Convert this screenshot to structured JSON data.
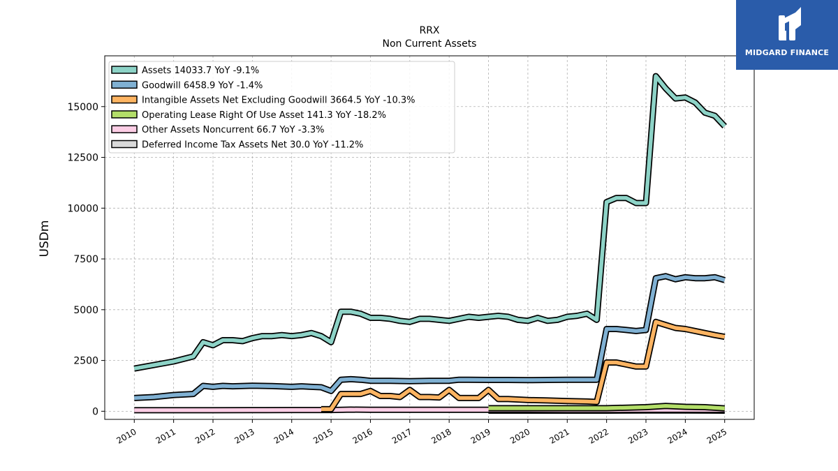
{
  "chart_data": {
    "type": "line",
    "title": "RRX",
    "subtitle": "Non Current  Assets",
    "ylabel": "USDm",
    "xlabel": "",
    "ylim": [
      -400,
      17500
    ],
    "xlim": [
      2009.25,
      2025.75
    ],
    "yticks": [
      0,
      2500,
      5000,
      7500,
      10000,
      12500,
      15000
    ],
    "ytick_labels": [
      "0",
      "2500",
      "5000",
      "7500",
      "10000",
      "12500",
      "15000"
    ],
    "xticks": [
      2010,
      2011,
      2012,
      2013,
      2014,
      2015,
      2016,
      2017,
      2018,
      2019,
      2020,
      2021,
      2022,
      2023,
      2024,
      2025
    ],
    "xtick_labels": [
      "2010",
      "2011",
      "2012",
      "2013",
      "2014",
      "2015",
      "2016",
      "2017",
      "2018",
      "2019",
      "2020",
      "2021",
      "2022",
      "2023",
      "2024",
      "2025"
    ],
    "grid": true,
    "legend_position": "top-left",
    "series": [
      {
        "name": "Assets  14033.7 YoY -9.1%",
        "color": "#8dd3c7",
        "points": [
          [
            2010.0,
            2100
          ],
          [
            2011.0,
            2450
          ],
          [
            2011.5,
            2700
          ],
          [
            2011.75,
            3400
          ],
          [
            2012.0,
            3250
          ],
          [
            2012.25,
            3500
          ],
          [
            2012.5,
            3500
          ],
          [
            2012.75,
            3450
          ],
          [
            2013.0,
            3600
          ],
          [
            2013.25,
            3700
          ],
          [
            2013.5,
            3700
          ],
          [
            2013.75,
            3750
          ],
          [
            2014.0,
            3700
          ],
          [
            2014.25,
            3750
          ],
          [
            2014.5,
            3850
          ],
          [
            2014.75,
            3700
          ],
          [
            2015.0,
            3400
          ],
          [
            2015.25,
            4900
          ],
          [
            2015.5,
            4900
          ],
          [
            2015.75,
            4800
          ],
          [
            2016.0,
            4600
          ],
          [
            2016.25,
            4600
          ],
          [
            2016.5,
            4550
          ],
          [
            2016.75,
            4450
          ],
          [
            2017.0,
            4400
          ],
          [
            2017.25,
            4550
          ],
          [
            2017.5,
            4550
          ],
          [
            2017.75,
            4500
          ],
          [
            2018.0,
            4450
          ],
          [
            2018.25,
            4550
          ],
          [
            2018.5,
            4650
          ],
          [
            2018.75,
            4600
          ],
          [
            2019.0,
            4650
          ],
          [
            2019.25,
            4700
          ],
          [
            2019.5,
            4650
          ],
          [
            2019.75,
            4500
          ],
          [
            2020.0,
            4450
          ],
          [
            2020.25,
            4600
          ],
          [
            2020.5,
            4450
          ],
          [
            2020.75,
            4500
          ],
          [
            2021.0,
            4650
          ],
          [
            2021.25,
            4700
          ],
          [
            2021.5,
            4800
          ],
          [
            2021.75,
            4500
          ],
          [
            2022.0,
            10300
          ],
          [
            2022.25,
            10500
          ],
          [
            2022.5,
            10500
          ],
          [
            2022.75,
            10250
          ],
          [
            2023.0,
            10250
          ],
          [
            2023.25,
            16500
          ],
          [
            2023.5,
            15900
          ],
          [
            2023.75,
            15400
          ],
          [
            2024.0,
            15450
          ],
          [
            2024.25,
            15200
          ],
          [
            2024.5,
            14700
          ],
          [
            2024.75,
            14550
          ],
          [
            2025.0,
            14033.7
          ]
        ]
      },
      {
        "name": "Goodwill  6458.9 YoY -1.4%",
        "color": "#80b1d3",
        "points": [
          [
            2010.0,
            650
          ],
          [
            2010.5,
            700
          ],
          [
            2011.0,
            800
          ],
          [
            2011.5,
            850
          ],
          [
            2011.75,
            1250
          ],
          [
            2012.0,
            1200
          ],
          [
            2012.25,
            1250
          ],
          [
            2012.5,
            1230
          ],
          [
            2013.0,
            1260
          ],
          [
            2013.5,
            1240
          ],
          [
            2014.0,
            1200
          ],
          [
            2014.25,
            1230
          ],
          [
            2014.5,
            1200
          ],
          [
            2014.75,
            1180
          ],
          [
            2015.0,
            1000
          ],
          [
            2015.25,
            1550
          ],
          [
            2015.5,
            1580
          ],
          [
            2015.75,
            1550
          ],
          [
            2016.0,
            1500
          ],
          [
            2016.5,
            1500
          ],
          [
            2017.0,
            1480
          ],
          [
            2017.5,
            1500
          ],
          [
            2018.0,
            1500
          ],
          [
            2018.25,
            1550
          ],
          [
            2018.5,
            1550
          ],
          [
            2019.0,
            1540
          ],
          [
            2019.5,
            1540
          ],
          [
            2020.0,
            1530
          ],
          [
            2020.5,
            1540
          ],
          [
            2021.0,
            1550
          ],
          [
            2021.5,
            1550
          ],
          [
            2021.75,
            1550
          ],
          [
            2022.0,
            4050
          ],
          [
            2022.25,
            4050
          ],
          [
            2022.5,
            4000
          ],
          [
            2022.75,
            3950
          ],
          [
            2023.0,
            4000
          ],
          [
            2023.25,
            6550
          ],
          [
            2023.5,
            6650
          ],
          [
            2023.75,
            6500
          ],
          [
            2024.0,
            6600
          ],
          [
            2024.25,
            6550
          ],
          [
            2024.5,
            6550
          ],
          [
            2024.75,
            6600
          ],
          [
            2025.0,
            6458.9
          ]
        ]
      },
      {
        "name": "Intangible Assets Net Excluding Goodwill  3664.5 YoY -10.3%",
        "color": "#fdb462",
        "points": [
          [
            2014.75,
            100
          ],
          [
            2015.0,
            100
          ],
          [
            2015.25,
            850
          ],
          [
            2015.5,
            850
          ],
          [
            2015.75,
            850
          ],
          [
            2016.0,
            1000
          ],
          [
            2016.25,
            750
          ],
          [
            2016.5,
            750
          ],
          [
            2016.75,
            700
          ],
          [
            2017.0,
            1050
          ],
          [
            2017.25,
            700
          ],
          [
            2017.5,
            700
          ],
          [
            2017.75,
            680
          ],
          [
            2018.0,
            1050
          ],
          [
            2018.25,
            650
          ],
          [
            2018.5,
            650
          ],
          [
            2018.75,
            650
          ],
          [
            2019.0,
            1050
          ],
          [
            2019.25,
            600
          ],
          [
            2019.5,
            600
          ],
          [
            2020.0,
            550
          ],
          [
            2020.5,
            530
          ],
          [
            2021.0,
            500
          ],
          [
            2021.5,
            480
          ],
          [
            2021.75,
            460
          ],
          [
            2022.0,
            2400
          ],
          [
            2022.25,
            2400
          ],
          [
            2022.5,
            2300
          ],
          [
            2022.75,
            2200
          ],
          [
            2023.0,
            2200
          ],
          [
            2023.25,
            4400
          ],
          [
            2023.5,
            4250
          ],
          [
            2023.75,
            4100
          ],
          [
            2024.0,
            4050
          ],
          [
            2024.25,
            3950
          ],
          [
            2024.5,
            3850
          ],
          [
            2024.75,
            3750
          ],
          [
            2025.0,
            3664.5
          ]
        ]
      },
      {
        "name": "Operating Lease Right Of Use Asset  141.3 YoY -18.2%",
        "color": "#b3de69",
        "points": [
          [
            2019.0,
            150
          ],
          [
            2020.0,
            150
          ],
          [
            2021.0,
            150
          ],
          [
            2022.0,
            150
          ],
          [
            2023.0,
            200
          ],
          [
            2023.5,
            260
          ],
          [
            2024.0,
            220
          ],
          [
            2024.5,
            200
          ],
          [
            2025.0,
            141.3
          ]
        ]
      },
      {
        "name": "Other Assets Noncurrent  66.7 YoY -3.3%",
        "color": "#fccde5",
        "points": [
          [
            2010.0,
            50
          ],
          [
            2011.0,
            50
          ],
          [
            2012.0,
            50
          ],
          [
            2013.0,
            55
          ],
          [
            2014.0,
            60
          ],
          [
            2015.0,
            60
          ],
          [
            2015.5,
            80
          ],
          [
            2016.0,
            70
          ],
          [
            2017.0,
            70
          ],
          [
            2018.0,
            70
          ],
          [
            2019.0,
            70
          ],
          [
            2020.0,
            70
          ],
          [
            2021.0,
            60
          ],
          [
            2022.0,
            60
          ],
          [
            2023.0,
            70
          ],
          [
            2024.0,
            70
          ],
          [
            2025.0,
            66.7
          ]
        ]
      },
      {
        "name": "Deferred Income Tax Assets Net  30.0 YoY -11.2%",
        "color": "#d9d9d9",
        "points": [
          [
            2019.0,
            30
          ],
          [
            2020.0,
            30
          ],
          [
            2021.0,
            30
          ],
          [
            2022.0,
            30
          ],
          [
            2023.0,
            35
          ],
          [
            2024.0,
            35
          ],
          [
            2025.0,
            30
          ]
        ]
      }
    ]
  },
  "branding": {
    "name": "MIDGARD FINANCE",
    "color": "#2a5caa"
  }
}
